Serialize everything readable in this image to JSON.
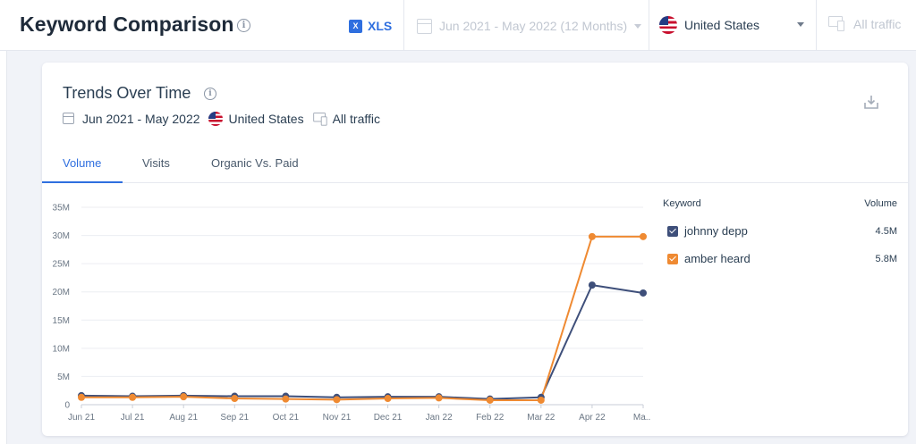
{
  "header": {
    "title": "Keyword Comparison",
    "export_label": "XLS",
    "export_icon": "excel-icon",
    "date_range": "Jun 2021 - May 2022 (12 Months)",
    "country": "United States",
    "traffic": "All traffic"
  },
  "card": {
    "title": "Trends Over Time",
    "date_range": "Jun 2021 - May 2022",
    "country": "United States",
    "traffic": "All traffic",
    "tabs": [
      {
        "label": "Volume",
        "active": true
      },
      {
        "label": "Visits",
        "active": false
      },
      {
        "label": "Organic Vs. Paid",
        "active": false
      }
    ]
  },
  "legend": {
    "col_keyword": "Keyword",
    "col_volume": "Volume",
    "items": [
      {
        "name": "johnny depp",
        "volume": "4.5M",
        "color": "#3e4f7a",
        "checked": true
      },
      {
        "name": "amber heard",
        "volume": "5.8M",
        "color": "#ef8a32",
        "checked": true
      }
    ]
  },
  "chart_data": {
    "type": "line",
    "categories": [
      "Jun 21",
      "Jul 21",
      "Aug 21",
      "Sep 21",
      "Oct 21",
      "Nov 21",
      "Dec 21",
      "Jan 22",
      "Feb 22",
      "Mar 22",
      "Apr 22",
      "Ma..."
    ],
    "y_ticks": [
      "0",
      "5M",
      "10M",
      "15M",
      "20M",
      "25M",
      "30M",
      "35M"
    ],
    "ylim": [
      0,
      35000000
    ],
    "grid": true,
    "series": [
      {
        "name": "johnny depp",
        "color": "#3e4f7a",
        "values": [
          1600000,
          1500000,
          1600000,
          1500000,
          1500000,
          1300000,
          1400000,
          1400000,
          1000000,
          1300000,
          21200000,
          19800000
        ]
      },
      {
        "name": "amber heard",
        "color": "#ef8a32",
        "values": [
          1300000,
          1300000,
          1400000,
          1100000,
          1000000,
          900000,
          1100000,
          1200000,
          800000,
          800000,
          29800000,
          29800000
        ]
      }
    ]
  }
}
